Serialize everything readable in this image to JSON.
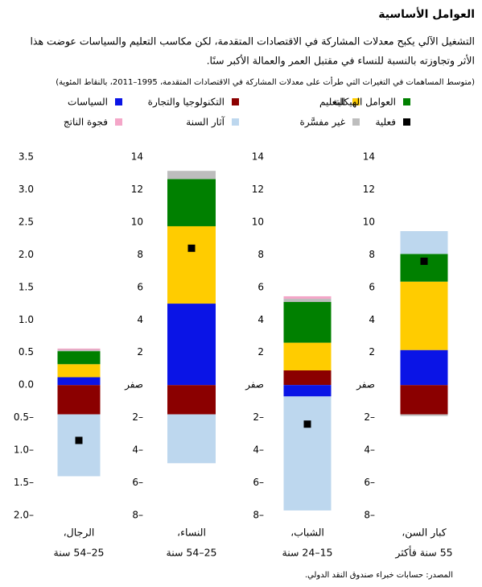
{
  "chart_data": {
    "type": "bar",
    "title": "العوامل الأساسية",
    "subtitle": [
      "التشغيل الآلي يكبح معدلات المشاركة في الاقتصادات المتقدمة، لكن مكاسب التعليم والسياسات عوضت هذا",
      "الأثر وتجاوزته بالنسبة للنساء في مقتبل العمر والعمالة الأكبر سنًا."
    ],
    "note": "(متوسط المساهمات في التغيرات التي طرأت على معدلات المشاركة في الاقتصادات المتقدمة، 1995–2011، بالنقاط المئوية)",
    "categories": [
      [
        "الرجال،",
        "25–54 سنة"
      ],
      [
        "النساء،",
        "25–54 سنة"
      ],
      [
        "الشباب،",
        "15–24 سنة"
      ],
      [
        "كبار السن،",
        "55 سنة فأكثر"
      ]
    ],
    "series": [
      {
        "name": "التكنولوجيا والتجارة",
        "color": "#8b0000",
        "values": [
          -0.45,
          -1.8,
          0.9,
          -1.8
        ]
      },
      {
        "name": "السياسات",
        "color": "#0a14e6",
        "values": [
          0.12,
          5.0,
          -0.7,
          2.15
        ]
      },
      {
        "name": "التعليم",
        "color": "#ffcc00",
        "values": [
          0.2,
          4.75,
          1.7,
          4.2
        ]
      },
      {
        "name": "العوامل الهيكلية",
        "color": "#008000",
        "values": [
          0.2,
          2.9,
          2.5,
          1.7
        ]
      },
      {
        "name": "غير مفسَّرة",
        "color": "#bdbdbd",
        "values": [
          0.02,
          0.5,
          0.2,
          -0.1
        ]
      },
      {
        "name": "فجوة الناتج",
        "color": "#f4a6c8",
        "values": [
          0.02,
          0,
          0.15,
          0
        ]
      },
      {
        "name": "آثار السنة",
        "color": "#bdd7ee",
        "values": [
          -0.95,
          -3.0,
          -7.0,
          1.4
        ]
      }
    ],
    "actual": {
      "name": "فعلية",
      "color": "#000000",
      "values": [
        -0.85,
        8.4,
        -2.4,
        7.6
      ]
    },
    "panels": [
      {
        "ylim": [
          -2.0,
          3.5
        ],
        "yticks": [
          3.5,
          {
            "value": 3,
            "label": "3.0"
          },
          2.5,
          {
            "value": 2,
            "label": "2.0"
          },
          1.5,
          {
            "value": 1,
            "label": "1.0"
          },
          0.5,
          {
            "value": 0,
            "label": "0.0"
          },
          {
            "value": -0.5,
            "label": "0.5–"
          },
          {
            "value": -1,
            "label": "1.0–"
          },
          {
            "value": -1.5,
            "label": "1.5–"
          },
          {
            "value": -2,
            "label": "2.0–"
          }
        ]
      },
      {
        "ylim": [
          -8,
          14
        ],
        "yticks": [
          14,
          12,
          10,
          8,
          6,
          4,
          2,
          {
            "value": 0,
            "label": "صفر"
          },
          {
            "value": -2,
            "label": "2–"
          },
          {
            "value": -4,
            "label": "4–"
          },
          {
            "value": -6,
            "label": "6–"
          },
          {
            "value": -8,
            "label": "8–"
          }
        ]
      },
      {
        "ylim": [
          -8,
          14
        ],
        "yticks": [
          14,
          12,
          10,
          8,
          6,
          4,
          2,
          {
            "value": 0,
            "label": "صفر"
          },
          {
            "value": -2,
            "label": "2–"
          },
          {
            "value": -4,
            "label": "4–"
          },
          {
            "value": -6,
            "label": "6–"
          },
          {
            "value": -8,
            "label": "8–"
          }
        ]
      },
      {
        "ylim": [
          -8,
          14
        ],
        "yticks": [
          14,
          12,
          10,
          8,
          6,
          4,
          2,
          {
            "value": 0,
            "label": "صفر"
          },
          {
            "value": -2,
            "label": "2–"
          },
          {
            "value": -4,
            "label": "4–"
          },
          {
            "value": -6,
            "label": "6–"
          },
          {
            "value": -8,
            "label": "8–"
          }
        ]
      }
    ],
    "source": "المصدر: حسابات خبراء صندوق النقد الدولي."
  }
}
